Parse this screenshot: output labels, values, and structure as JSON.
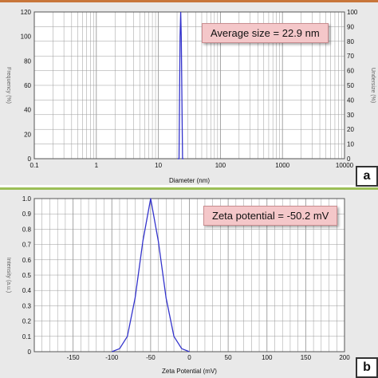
{
  "panel_a": {
    "letter": "a",
    "annotation": "Average size = 22.9 nm",
    "left_axis_label": "Frequency (%)",
    "right_axis_label": "Undersize (%)"
  },
  "panel_b": {
    "letter": "b",
    "annotation": "Zeta potential = -50.2 mV",
    "y_axis_label": "Intensity (a.u.)"
  },
  "colors": {
    "line": "#3333cc",
    "grid": "#9a9a9a",
    "panel_bg": "#e9e9e9",
    "plot_bg": "#ffffff",
    "callout_bg": "#f4c7c9"
  },
  "chart_data": [
    {
      "type": "line",
      "xlabel": "Diameter (nm)",
      "ylabel": "Frequency (%)",
      "y2label": "Undersize (%)",
      "x_scale": "log",
      "xlim": [
        0.1,
        10000
      ],
      "ylim": [
        0,
        120
      ],
      "y2lim": [
        0,
        100
      ],
      "x_ticks": [
        "0.1",
        "1",
        "10",
        "100",
        "1000",
        "10000"
      ],
      "y_ticks": [
        "0",
        "20",
        "40",
        "60",
        "80",
        "100",
        "120"
      ],
      "y2_ticks": [
        "0",
        "10",
        "20",
        "30",
        "40",
        "50",
        "60",
        "70",
        "80",
        "90",
        "100"
      ],
      "grid": true,
      "annotation": "Average size = 22.9 nm",
      "series": [
        {
          "x": [
            20.5,
            21.5,
            22.4,
            22.9,
            23.4,
            24.5,
            25.5
          ],
          "y": [
            0,
            0,
            100,
            120,
            100,
            0,
            0
          ]
        }
      ]
    },
    {
      "type": "line",
      "xlabel": "Zeta Potential (mV)",
      "ylabel": "Intensity (a.u.)",
      "xlim": [
        -200,
        200
      ],
      "ylim": [
        0,
        1.0
      ],
      "x_ticks": [
        "-150",
        "-100",
        "-50",
        "0",
        "50",
        "100",
        "150",
        "200"
      ],
      "y_ticks": [
        "0",
        "0.1",
        "0.2",
        "0.3",
        "0.4",
        "0.5",
        "0.6",
        "0.7",
        "0.8",
        "0.9",
        "1.0"
      ],
      "grid": true,
      "annotation": "Zeta potential = -50.2 mV",
      "series": [
        {
          "x": [
            -100,
            -90,
            -80,
            -70,
            -60,
            -50,
            -40,
            -30,
            -20,
            -10,
            0
          ],
          "y": [
            0.0,
            0.02,
            0.1,
            0.35,
            0.72,
            1.0,
            0.72,
            0.35,
            0.1,
            0.02,
            0.0
          ]
        }
      ]
    }
  ]
}
